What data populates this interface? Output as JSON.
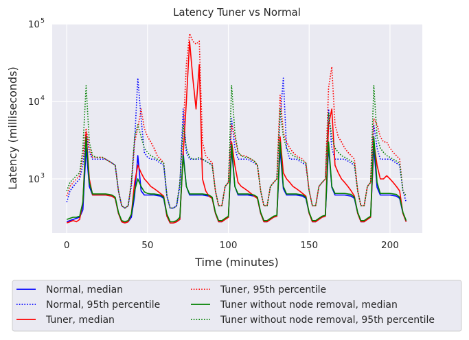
{
  "chart_data": {
    "type": "line",
    "title": "Latency Tuner vs Normal",
    "xlabel": "Time (minutes)",
    "ylabel": "Latency (milliseconds)",
    "xlim": [
      -9,
      220
    ],
    "ylim": [
      200,
      100000
    ],
    "yscale": "log",
    "x_ticks": [
      0,
      50,
      100,
      150,
      200
    ],
    "y_ticks": [
      1000,
      10000,
      100000
    ],
    "y_tick_labels": [
      {
        "base": "10",
        "exp": "3"
      },
      {
        "base": "10",
        "exp": "4"
      },
      {
        "base": "10",
        "exp": "5"
      }
    ],
    "grid": true,
    "legend_placement": "below",
    "x": [
      0,
      2,
      4,
      6,
      8,
      10,
      12,
      14,
      16,
      18,
      20,
      22,
      24,
      26,
      28,
      30,
      32,
      34,
      36,
      38,
      40,
      42,
      44,
      46,
      48,
      50,
      52,
      54,
      56,
      58,
      60,
      62,
      64,
      66,
      68,
      70,
      72,
      74,
      76,
      78,
      80,
      82,
      84,
      86,
      88,
      90,
      92,
      94,
      96,
      98,
      100,
      102,
      104,
      106,
      108,
      110,
      112,
      114,
      116,
      118,
      120,
      122,
      124,
      126,
      128,
      130,
      132,
      134,
      136,
      138,
      140,
      142,
      144,
      146,
      148,
      150,
      152,
      154,
      156,
      158,
      160,
      162,
      164,
      166,
      168,
      170,
      172,
      174,
      176,
      178,
      180,
      182,
      184,
      186,
      188,
      190,
      192,
      194,
      196,
      198,
      200,
      202,
      204,
      206,
      208,
      210
    ],
    "series": [
      {
        "name": "Normal, median",
        "color": "#0000ff",
        "dash": "solid",
        "values": [
          280,
          290,
          300,
          310,
          320,
          400,
          2500,
          800,
          620,
          620,
          620,
          620,
          620,
          610,
          600,
          560,
          360,
          280,
          270,
          280,
          320,
          600,
          2000,
          700,
          620,
          620,
          620,
          620,
          610,
          600,
          560,
          330,
          270,
          270,
          280,
          300,
          2200,
          800,
          620,
          620,
          620,
          620,
          620,
          610,
          600,
          560,
          360,
          280,
          280,
          300,
          320,
          2400,
          800,
          620,
          620,
          620,
          620,
          610,
          600,
          560,
          360,
          280,
          280,
          300,
          320,
          330,
          2400,
          750,
          620,
          620,
          620,
          620,
          610,
          600,
          560,
          360,
          280,
          280,
          300,
          320,
          330,
          2600,
          780,
          620,
          620,
          620,
          620,
          610,
          600,
          560,
          360,
          280,
          280,
          300,
          320,
          2600,
          780,
          620,
          620,
          620,
          620,
          610,
          600,
          560,
          360,
          280
        ]
      },
      {
        "name": "Normal, 95th percentile",
        "color": "#0000ff",
        "dash": "dotted",
        "values": [
          500,
          700,
          800,
          900,
          1000,
          1500,
          4000,
          2200,
          1800,
          1800,
          1800,
          1800,
          1800,
          1700,
          1600,
          1500,
          700,
          450,
          420,
          450,
          800,
          3000,
          20000,
          6000,
          2200,
          1900,
          1800,
          1800,
          1700,
          1600,
          1500,
          600,
          420,
          420,
          450,
          800,
          8000,
          2200,
          1800,
          1800,
          1800,
          1800,
          1800,
          1700,
          1600,
          1500,
          700,
          450,
          450,
          800,
          900,
          6000,
          2500,
          1800,
          1800,
          1800,
          1800,
          1700,
          1600,
          1500,
          700,
          450,
          450,
          800,
          900,
          1000,
          6000,
          20000,
          2500,
          1800,
          1800,
          1800,
          1700,
          1600,
          1500,
          700,
          450,
          450,
          800,
          900,
          1000,
          8000,
          2500,
          1800,
          1800,
          1800,
          1800,
          1700,
          1600,
          1500,
          700,
          450,
          450,
          800,
          900,
          5000,
          2500,
          1800,
          1800,
          1800,
          1800,
          1700,
          1600,
          1500,
          700,
          500
        ]
      },
      {
        "name": "Tuner, median",
        "color": "#ff0000",
        "dash": "solid",
        "values": [
          270,
          280,
          290,
          280,
          300,
          500,
          4000,
          1000,
          620,
          620,
          620,
          620,
          620,
          610,
          600,
          560,
          360,
          280,
          270,
          280,
          350,
          900,
          1500,
          1200,
          1000,
          900,
          800,
          750,
          700,
          650,
          600,
          330,
          270,
          270,
          280,
          300,
          2000,
          10000,
          60000,
          20000,
          8000,
          30000,
          1000,
          700,
          600,
          560,
          360,
          280,
          280,
          300,
          320,
          3000,
          1500,
          900,
          800,
          750,
          700,
          650,
          600,
          560,
          360,
          280,
          280,
          300,
          320,
          330,
          3500,
          1200,
          1000,
          900,
          800,
          750,
          700,
          650,
          600,
          360,
          280,
          280,
          300,
          320,
          330,
          5000,
          8000,
          1500,
          1200,
          1000,
          900,
          800,
          700,
          600,
          360,
          280,
          280,
          300,
          320,
          3000,
          1500,
          1000,
          1000,
          1100,
          1000,
          900,
          800,
          700,
          360,
          280
        ]
      },
      {
        "name": "Tuner, 95th percentile",
        "color": "#ff0000",
        "dash": "dotted",
        "values": [
          600,
          800,
          900,
          1000,
          1100,
          2000,
          4500,
          2500,
          1900,
          1900,
          1900,
          1900,
          1800,
          1700,
          1600,
          1500,
          700,
          450,
          420,
          450,
          900,
          3000,
          4500,
          8000,
          4500,
          3500,
          3000,
          2500,
          2000,
          1800,
          1600,
          600,
          420,
          420,
          450,
          900,
          4000,
          30000,
          75000,
          60000,
          55000,
          60000,
          3000,
          2000,
          1800,
          1600,
          700,
          450,
          450,
          800,
          900,
          5000,
          3500,
          2200,
          2000,
          2000,
          1900,
          1800,
          1700,
          1500,
          700,
          450,
          450,
          800,
          900,
          1000,
          12000,
          4000,
          3000,
          2500,
          2200,
          2000,
          1900,
          1800,
          1600,
          700,
          450,
          450,
          800,
          900,
          1000,
          15000,
          28000,
          5000,
          3500,
          3000,
          2500,
          2200,
          2000,
          1800,
          700,
          450,
          450,
          800,
          900,
          6000,
          5000,
          3500,
          3000,
          3000,
          2500,
          2200,
          2000,
          1800,
          700,
          600
        ]
      },
      {
        "name": "Tuner without node removal, median",
        "color": "#008000",
        "dash": "solid",
        "values": [
          300,
          310,
          320,
          320,
          330,
          500,
          3500,
          900,
          640,
          640,
          640,
          640,
          640,
          630,
          620,
          580,
          370,
          290,
          280,
          290,
          350,
          700,
          1000,
          800,
          680,
          650,
          640,
          640,
          630,
          620,
          580,
          350,
          280,
          280,
          290,
          320,
          2000,
          800,
          640,
          640,
          640,
          640,
          640,
          630,
          620,
          580,
          370,
          290,
          290,
          310,
          330,
          2800,
          800,
          640,
          640,
          640,
          640,
          630,
          620,
          580,
          370,
          290,
          290,
          310,
          330,
          340,
          3000,
          800,
          640,
          640,
          640,
          640,
          630,
          620,
          580,
          370,
          290,
          290,
          310,
          330,
          340,
          3000,
          800,
          650,
          650,
          650,
          650,
          640,
          630,
          580,
          370,
          290,
          290,
          310,
          330,
          3500,
          900,
          650,
          650,
          650,
          650,
          640,
          630,
          580,
          370,
          290
        ]
      },
      {
        "name": "Tuner without node removal, 95th percentile",
        "color": "#008000",
        "dash": "dotted",
        "values": [
          700,
          900,
          1000,
          1100,
          1200,
          2500,
          16000,
          3000,
          2000,
          1900,
          1900,
          1900,
          1800,
          1700,
          1600,
          1500,
          700,
          450,
          420,
          450,
          900,
          3500,
          5000,
          3500,
          2500,
          2200,
          2000,
          1900,
          1800,
          1700,
          1600,
          600,
          420,
          420,
          450,
          900,
          5000,
          2500,
          1900,
          1800,
          1800,
          1900,
          1800,
          1700,
          1600,
          1500,
          700,
          450,
          450,
          800,
          900,
          16000,
          4000,
          2200,
          2000,
          1900,
          1900,
          1800,
          1700,
          1500,
          700,
          450,
          450,
          800,
          900,
          1000,
          8000,
          3500,
          2500,
          2200,
          2000,
          1900,
          1800,
          1700,
          1600,
          700,
          450,
          450,
          800,
          900,
          1000,
          7000,
          3500,
          2500,
          2200,
          2000,
          1900,
          1800,
          1700,
          1600,
          700,
          450,
          450,
          800,
          900,
          16000,
          3500,
          2500,
          2200,
          2000,
          1900,
          1800,
          1700,
          1600,
          700,
          600
        ]
      }
    ]
  }
}
